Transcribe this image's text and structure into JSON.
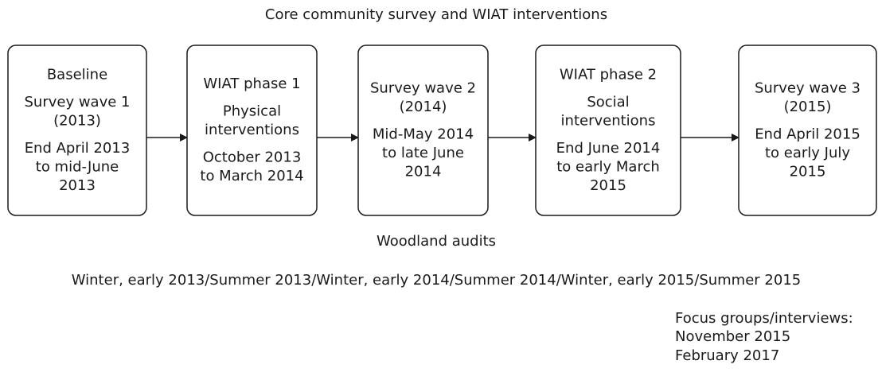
{
  "title": "Core community survey and WIAT interventions",
  "nodes": [
    {
      "groups": [
        [
          "Baseline"
        ],
        [
          "Survey wave 1",
          "(2013)"
        ],
        [
          "End April 2013",
          "to mid-June",
          "2013"
        ]
      ]
    },
    {
      "groups": [
        [
          "WIAT phase 1"
        ],
        [
          "Physical",
          "interventions"
        ],
        [
          "October 2013",
          "to March 2014"
        ]
      ]
    },
    {
      "groups": [
        [
          "Survey wave 2",
          "(2014)"
        ],
        [
          "Mid-May 2014",
          "to late June",
          "2014"
        ]
      ]
    },
    {
      "groups": [
        [
          "WIAT phase 2"
        ],
        [
          "Social",
          "interventions"
        ],
        [
          "End June 2014",
          "to early March",
          "2015"
        ]
      ]
    },
    {
      "groups": [
        [
          "Survey wave 3",
          "(2015)"
        ],
        [
          "End April 2015",
          "to early July",
          "2015"
        ]
      ]
    }
  ],
  "woodland": {
    "label": "Woodland audits",
    "text": "Winter, early 2013/Summer 2013/Winter, early 2014/Summer 2014/Winter, early 2015/Summer 2015"
  },
  "focus": [
    "Focus groups/interviews:",
    "November 2015",
    "February 2017"
  ]
}
